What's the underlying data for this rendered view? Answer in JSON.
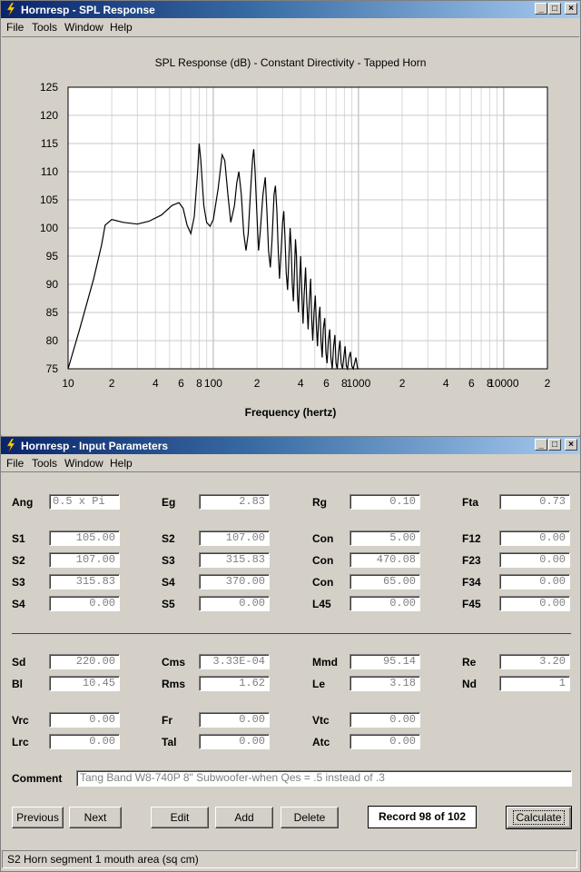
{
  "win1": {
    "title": "Hornresp - SPL Response",
    "menu": [
      "File",
      "Tools",
      "Window",
      "Help"
    ],
    "chart_title": "SPL Response (dB) - Constant Directivity - Tapped Horn",
    "xlabel": "Frequency (hertz)"
  },
  "chart_data": {
    "type": "line",
    "title": "SPL Response (dB) - Constant Directivity - Tapped Horn",
    "xlabel": "Frequency (hertz)",
    "ylabel": "",
    "xscale": "log",
    "xlim": [
      10,
      20000
    ],
    "ylim": [
      75,
      125
    ],
    "grid": true,
    "yticks": [
      "75",
      "80",
      "85",
      "90",
      "95",
      "100",
      "105",
      "110",
      "115",
      "120",
      "125"
    ],
    "xticks": [
      "10",
      "2",
      "4",
      "6",
      "8",
      "100",
      "2",
      "4",
      "6",
      "8",
      "1000",
      "2",
      "4",
      "6",
      "8",
      "10000",
      "2"
    ],
    "series": [
      {
        "color": "#000000",
        "points": [
          [
            10,
            75
          ],
          [
            12,
            82
          ],
          [
            15,
            91
          ],
          [
            17,
            97
          ],
          [
            18,
            100.5
          ],
          [
            20,
            101.5
          ],
          [
            24,
            101
          ],
          [
            30,
            100.7
          ],
          [
            36,
            101.2
          ],
          [
            44,
            102.3
          ],
          [
            52,
            104
          ],
          [
            58,
            104.5
          ],
          [
            62,
            103.5
          ],
          [
            66,
            100.5
          ],
          [
            70,
            99
          ],
          [
            74,
            102
          ],
          [
            78,
            110
          ],
          [
            80,
            115
          ],
          [
            82,
            112
          ],
          [
            86,
            104
          ],
          [
            90,
            101
          ],
          [
            95,
            100.3
          ],
          [
            100,
            101.5
          ],
          [
            108,
            107
          ],
          [
            115,
            113
          ],
          [
            120,
            112
          ],
          [
            126,
            106
          ],
          [
            132,
            101
          ],
          [
            140,
            104
          ],
          [
            145,
            108
          ],
          [
            150,
            110
          ],
          [
            156,
            106
          ],
          [
            162,
            99
          ],
          [
            168,
            96
          ],
          [
            174,
            99
          ],
          [
            180,
            106
          ],
          [
            186,
            112
          ],
          [
            190,
            114
          ],
          [
            194,
            110
          ],
          [
            200,
            102
          ],
          [
            205,
            96
          ],
          [
            210,
            99
          ],
          [
            220,
            106
          ],
          [
            228,
            109
          ],
          [
            234,
            103
          ],
          [
            240,
            96
          ],
          [
            247,
            93
          ],
          [
            254,
            98
          ],
          [
            262,
            106
          ],
          [
            268,
            107.5
          ],
          [
            274,
            103
          ],
          [
            280,
            96
          ],
          [
            286,
            91
          ],
          [
            292,
            95
          ],
          [
            300,
            101
          ],
          [
            306,
            103
          ],
          [
            312,
            98
          ],
          [
            318,
            92
          ],
          [
            325,
            89
          ],
          [
            332,
            95
          ],
          [
            338,
            100
          ],
          [
            343,
            97
          ],
          [
            350,
            90
          ],
          [
            356,
            87
          ],
          [
            362,
            92
          ],
          [
            368,
            98
          ],
          [
            374,
            95
          ],
          [
            380,
            88
          ],
          [
            386,
            85
          ],
          [
            392,
            90
          ],
          [
            400,
            95
          ],
          [
            408,
            88
          ],
          [
            415,
            83
          ],
          [
            422,
            88
          ],
          [
            432,
            93
          ],
          [
            440,
            87
          ],
          [
            450,
            82
          ],
          [
            458,
            87
          ],
          [
            468,
            91
          ],
          [
            476,
            84
          ],
          [
            484,
            80
          ],
          [
            494,
            85
          ],
          [
            504,
            88
          ],
          [
            514,
            82
          ],
          [
            522,
            79
          ],
          [
            532,
            84
          ],
          [
            542,
            86
          ],
          [
            552,
            80
          ],
          [
            562,
            77
          ],
          [
            572,
            82
          ],
          [
            585,
            84
          ],
          [
            596,
            78
          ],
          [
            608,
            76
          ],
          [
            620,
            80
          ],
          [
            634,
            82
          ],
          [
            646,
            77
          ],
          [
            660,
            75
          ],
          [
            674,
            79
          ],
          [
            688,
            81
          ],
          [
            700,
            76
          ],
          [
            714,
            75
          ],
          [
            730,
            78
          ],
          [
            746,
            80
          ],
          [
            760,
            76
          ],
          [
            776,
            75
          ],
          [
            792,
            77
          ],
          [
            808,
            79
          ],
          [
            824,
            75.5
          ],
          [
            840,
            75
          ],
          [
            860,
            77
          ],
          [
            880,
            78
          ],
          [
            900,
            75.5
          ],
          [
            920,
            75
          ],
          [
            940,
            76
          ],
          [
            960,
            77
          ],
          [
            985,
            75
          ],
          [
            1010,
            75
          ]
        ]
      }
    ]
  },
  "win2": {
    "title": "Hornresp - Input Parameters",
    "menu": [
      "File",
      "Tools",
      "Window",
      "Help"
    ],
    "params": [
      {
        "label": "Ang",
        "value": "0.5 x Pi"
      },
      {
        "label": "Eg",
        "value": "2.83"
      },
      {
        "label": "Rg",
        "value": "0.10"
      },
      {
        "label": "Fta",
        "value": "0.73"
      },
      {
        "label": "S1",
        "value": "105.00"
      },
      {
        "label": "S2",
        "value": "107.00"
      },
      {
        "label": "Con",
        "value": "5.00"
      },
      {
        "label": "F12",
        "value": "0.00"
      },
      {
        "label": "S2",
        "value": "107.00"
      },
      {
        "label": "S3",
        "value": "315.83"
      },
      {
        "label": "Con",
        "value": "470.08"
      },
      {
        "label": "F23",
        "value": "0.00"
      },
      {
        "label": "S3",
        "value": "315.83"
      },
      {
        "label": "S4",
        "value": "370.00"
      },
      {
        "label": "Con",
        "value": "65.00"
      },
      {
        "label": "F34",
        "value": "0.00"
      },
      {
        "label": "S4",
        "value": "0.00"
      },
      {
        "label": "S5",
        "value": "0.00"
      },
      {
        "label": "L45",
        "value": "0.00"
      },
      {
        "label": "F45",
        "value": "0.00"
      },
      {
        "label": "Sd",
        "value": "220.00"
      },
      {
        "label": "Cms",
        "value": "3.33E-04"
      },
      {
        "label": "Mmd",
        "value": "95.14"
      },
      {
        "label": "Re",
        "value": "3.20"
      },
      {
        "label": "Bl",
        "value": "10.45"
      },
      {
        "label": "Rms",
        "value": "1.62"
      },
      {
        "label": "Le",
        "value": "3.18"
      },
      {
        "label": "Nd",
        "value": "1"
      },
      {
        "label": "Vrc",
        "value": "0.00"
      },
      {
        "label": "Fr",
        "value": "0.00"
      },
      {
        "label": "Vtc",
        "value": "0.00"
      },
      {
        "label": "Lrc",
        "value": "0.00"
      },
      {
        "label": "Tal",
        "value": "0.00"
      },
      {
        "label": "Atc",
        "value": "0.00"
      }
    ],
    "comment_label": "Comment",
    "comment": "Tang Band W8-740P 8\" Subwoofer-when Qes = .5 instead of .3",
    "buttons": {
      "previous": "Previous",
      "next": "Next",
      "edit": "Edit",
      "add": "Add",
      "delete": "Delete",
      "calculate": "Calculate"
    },
    "record": "Record 98 of 102",
    "status": "S2   Horn segment 1 mouth area  (sq cm)"
  }
}
